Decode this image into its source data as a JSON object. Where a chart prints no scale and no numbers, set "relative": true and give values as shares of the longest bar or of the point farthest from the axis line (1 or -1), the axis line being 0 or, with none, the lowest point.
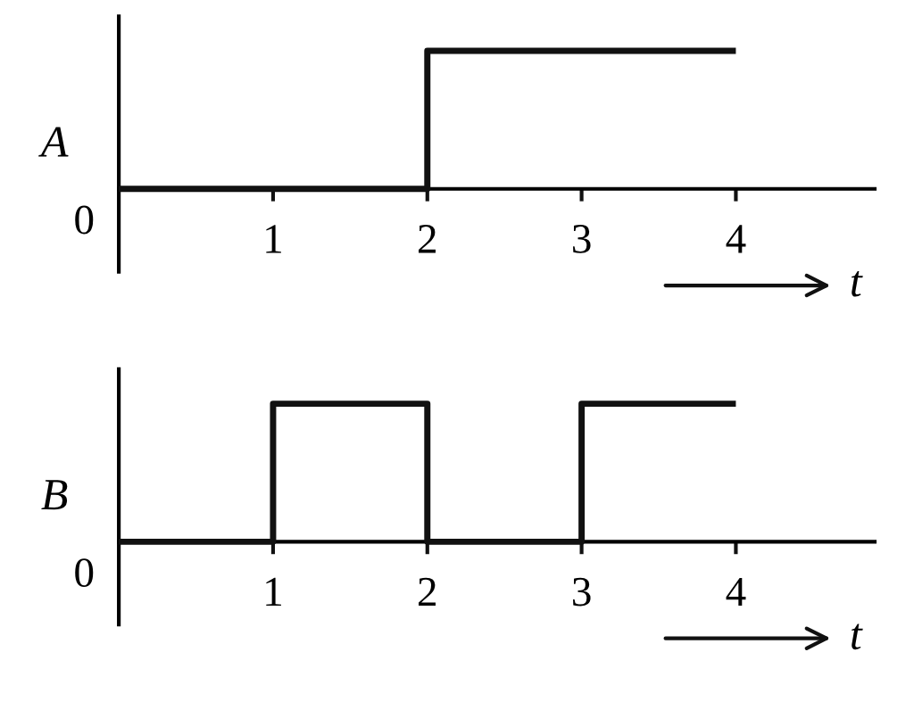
{
  "chart_data": [
    {
      "type": "step",
      "relative": true,
      "ylabel": "A",
      "xlabel": "t",
      "x": [
        0,
        2,
        4
      ],
      "series": [
        {
          "color": "#111111",
          "values": [
            0,
            1,
            1
          ]
        }
      ],
      "xlim": [
        0,
        4.9
      ],
      "xticks": [
        1,
        2,
        3,
        4
      ],
      "annotations": [
        {
          "text": "0",
          "x": 0,
          "y": 0
        }
      ]
    },
    {
      "type": "step",
      "relative": true,
      "ylabel": "B",
      "xlabel": "t",
      "x": [
        0,
        1,
        2,
        3,
        4
      ],
      "series": [
        {
          "color": "#111111",
          "values": [
            0,
            1,
            0,
            1,
            1
          ]
        }
      ],
      "xlim": [
        0,
        4.9
      ],
      "xticks": [
        1,
        2,
        3,
        4
      ],
      "annotations": [
        {
          "text": "0",
          "x": 0,
          "y": 0
        }
      ]
    }
  ]
}
